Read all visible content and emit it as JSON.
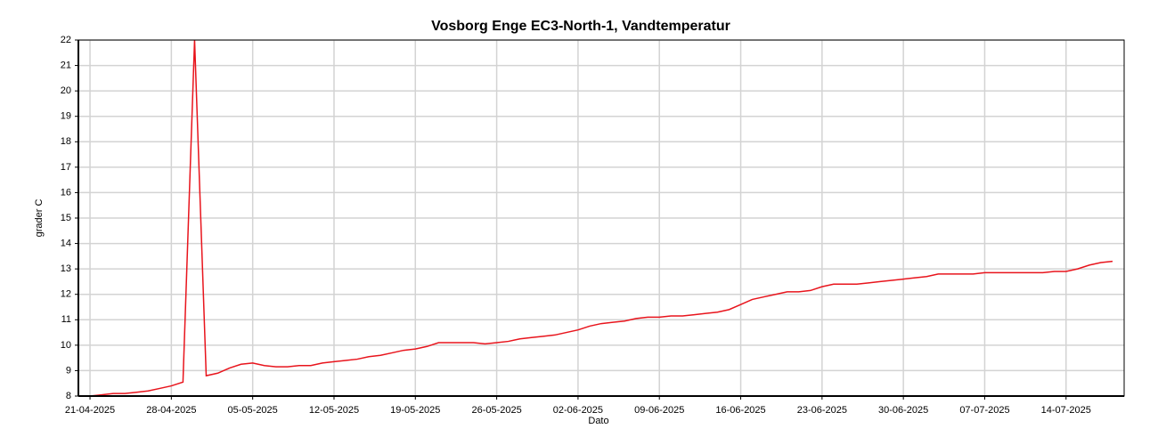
{
  "chart_data": {
    "type": "line",
    "title": "Vosborg Enge EC3-North-1, Vandtemperatur",
    "xlabel": "Dato",
    "ylabel": "grader C",
    "x": [
      "2025-04-20",
      "2025-04-21",
      "2025-04-22",
      "2025-04-23",
      "2025-04-24",
      "2025-04-25",
      "2025-04-26",
      "2025-04-27",
      "2025-04-28",
      "2025-04-29",
      "2025-04-30",
      "2025-05-01",
      "2025-05-02",
      "2025-05-03",
      "2025-05-04",
      "2025-05-05",
      "2025-05-06",
      "2025-05-07",
      "2025-05-08",
      "2025-05-09",
      "2025-05-10",
      "2025-05-11",
      "2025-05-12",
      "2025-05-13",
      "2025-05-14",
      "2025-05-15",
      "2025-05-16",
      "2025-05-17",
      "2025-05-18",
      "2025-05-19",
      "2025-05-20",
      "2025-05-21",
      "2025-05-22",
      "2025-05-23",
      "2025-05-24",
      "2025-05-25",
      "2025-05-26",
      "2025-05-27",
      "2025-05-28",
      "2025-05-29",
      "2025-05-30",
      "2025-05-31",
      "2025-06-01",
      "2025-06-02",
      "2025-06-03",
      "2025-06-04",
      "2025-06-05",
      "2025-06-06",
      "2025-06-07",
      "2025-06-08",
      "2025-06-09",
      "2025-06-10",
      "2025-06-11",
      "2025-06-12",
      "2025-06-13",
      "2025-06-14",
      "2025-06-15",
      "2025-06-16",
      "2025-06-17",
      "2025-06-18",
      "2025-06-19",
      "2025-06-20",
      "2025-06-21",
      "2025-06-22",
      "2025-06-23",
      "2025-06-24",
      "2025-06-25",
      "2025-06-26",
      "2025-06-27",
      "2025-06-28",
      "2025-06-29",
      "2025-06-30",
      "2025-07-01",
      "2025-07-02",
      "2025-07-03",
      "2025-07-04",
      "2025-07-05",
      "2025-07-06",
      "2025-07-07",
      "2025-07-08",
      "2025-07-09",
      "2025-07-10",
      "2025-07-11",
      "2025-07-12",
      "2025-07-13",
      "2025-07-14",
      "2025-07-15",
      "2025-07-16",
      "2025-07-17",
      "2025-07-18"
    ],
    "series": [
      {
        "name": "Vandtemperatur",
        "color": "#e8141c",
        "values": [
          7.95,
          8.0,
          8.05,
          8.1,
          8.1,
          8.15,
          8.2,
          8.3,
          8.4,
          8.55,
          22,
          8.8,
          8.9,
          9.1,
          9.25,
          9.3,
          9.2,
          9.15,
          9.15,
          9.2,
          9.2,
          9.3,
          9.35,
          9.4,
          9.45,
          9.55,
          9.6,
          9.7,
          9.8,
          9.85,
          9.95,
          10.1,
          10.1,
          10.1,
          10.1,
          10.05,
          10.1,
          10.15,
          10.25,
          10.3,
          10.35,
          10.4,
          10.5,
          10.6,
          10.75,
          10.85,
          10.9,
          10.95,
          11.05,
          11.1,
          11.1,
          11.15,
          11.15,
          11.2,
          11.25,
          11.3,
          11.4,
          11.6,
          11.8,
          11.9,
          12.0,
          12.1,
          12.1,
          12.15,
          12.3,
          12.4,
          12.4,
          12.4,
          12.45,
          12.5,
          12.55,
          12.6,
          12.65,
          12.7,
          12.8,
          12.8,
          12.8,
          12.8,
          12.85,
          12.85,
          12.85,
          12.85,
          12.85,
          12.85,
          12.9,
          12.9,
          13.0,
          13.15,
          13.25,
          13.3
        ]
      }
    ],
    "xlim": [
      "2025-04-20",
      "2025-07-19"
    ],
    "xticks": [
      {
        "value": "2025-04-21",
        "label": "21-04-2025"
      },
      {
        "value": "2025-04-28",
        "label": "28-04-2025"
      },
      {
        "value": "2025-05-05",
        "label": "05-05-2025"
      },
      {
        "value": "2025-05-12",
        "label": "12-05-2025"
      },
      {
        "value": "2025-05-19",
        "label": "19-05-2025"
      },
      {
        "value": "2025-05-26",
        "label": "26-05-2025"
      },
      {
        "value": "2025-06-02",
        "label": "02-06-2025"
      },
      {
        "value": "2025-06-09",
        "label": "09-06-2025"
      },
      {
        "value": "2025-06-16",
        "label": "16-06-2025"
      },
      {
        "value": "2025-06-23",
        "label": "23-06-2025"
      },
      {
        "value": "2025-06-30",
        "label": "30-06-2025"
      },
      {
        "value": "2025-07-07",
        "label": "07-07-2025"
      },
      {
        "value": "2025-07-14",
        "label": "14-07-2025"
      }
    ],
    "ylim": [
      8,
      22
    ],
    "yticks": [
      8,
      9,
      10,
      11,
      12,
      13,
      14,
      15,
      16,
      17,
      18,
      19,
      20,
      21,
      22
    ],
    "grid": true
  }
}
